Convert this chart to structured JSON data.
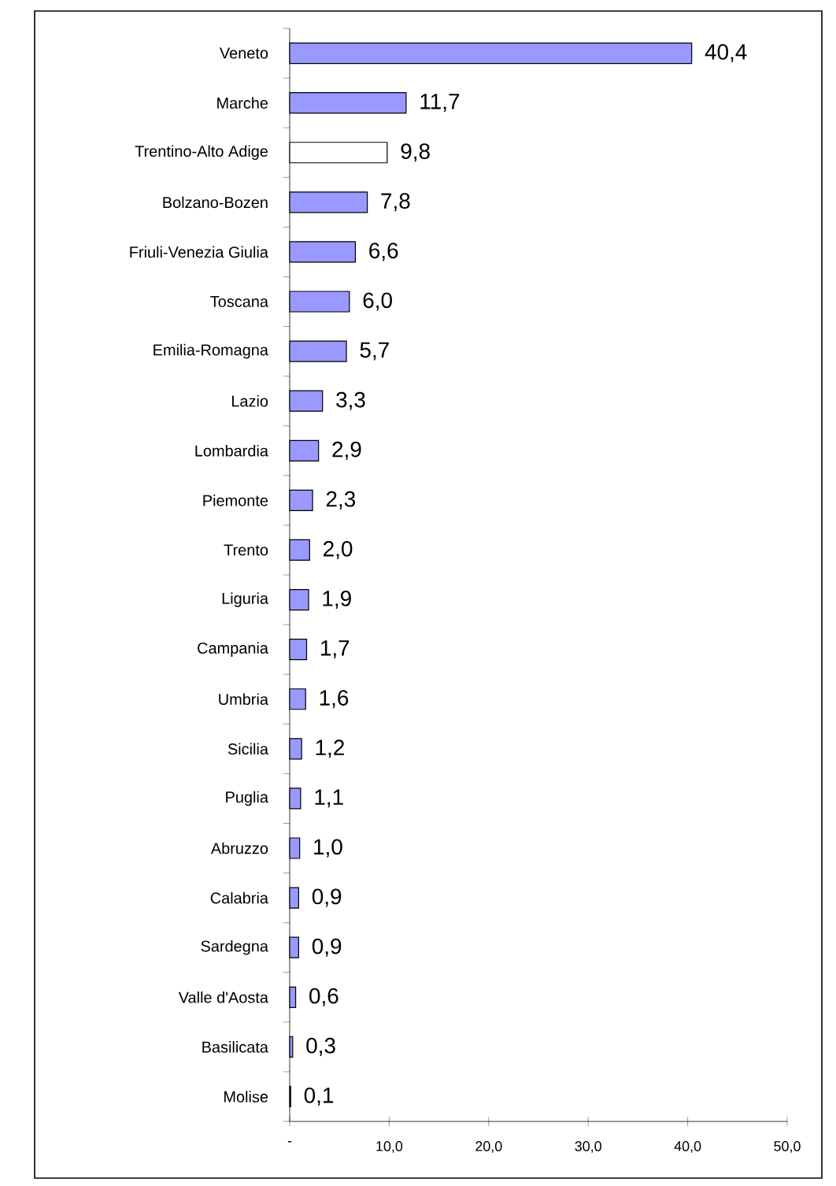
{
  "chart_data": {
    "type": "bar",
    "orientation": "horizontal",
    "categories": [
      "Veneto",
      "Marche",
      "Trentino-Alto Adige",
      "Bolzano-Bozen",
      "Friuli-Venezia Giulia",
      "Toscana",
      "Emilia-Romagna",
      "Lazio",
      "Lombardia",
      "Piemonte",
      "Trento",
      "Liguria",
      "Campania",
      "Umbria",
      "Sicilia",
      "Puglia",
      "Abruzzo",
      "Calabria",
      "Sardegna",
      "Valle d'Aosta",
      "Basilicata",
      "Molise"
    ],
    "values": [
      40.4,
      11.7,
      9.8,
      7.8,
      6.6,
      6.0,
      5.7,
      3.3,
      2.9,
      2.3,
      2.0,
      1.9,
      1.7,
      1.6,
      1.2,
      1.1,
      1.0,
      0.9,
      0.9,
      0.6,
      0.3,
      0.1
    ],
    "colors": [
      "#9999ff",
      "#9999ff",
      "#ffffff",
      "#9999ff",
      "#9999ff",
      "#9999ff",
      "#9999ff",
      "#9999ff",
      "#9999ff",
      "#9999ff",
      "#9999ff",
      "#9999ff",
      "#9999ff",
      "#9999ff",
      "#9999ff",
      "#9999ff",
      "#9999ff",
      "#9999ff",
      "#9999ff",
      "#9999ff",
      "#9999ff",
      "#9999ff"
    ],
    "value_labels": [
      "40,4",
      "11,7",
      "9,8",
      "7,8",
      "6,6",
      "6,0",
      "5,7",
      "3,3",
      "2,9",
      "2,3",
      "2,0",
      "1,9",
      "1,7",
      "1,6",
      "1,2",
      "1,1",
      "1,0",
      "0,9",
      "0,9",
      "0,6",
      "0,3",
      "0,1"
    ],
    "xlim": [
      0,
      50
    ],
    "xticks": [
      {
        "value": 0,
        "label": "-"
      },
      {
        "value": 10,
        "label": "10,0"
      },
      {
        "value": 20,
        "label": "20,0"
      },
      {
        "value": 30,
        "label": "30,0"
      },
      {
        "value": 40,
        "label": "40,0"
      },
      {
        "value": 50,
        "label": "50,0"
      }
    ]
  }
}
